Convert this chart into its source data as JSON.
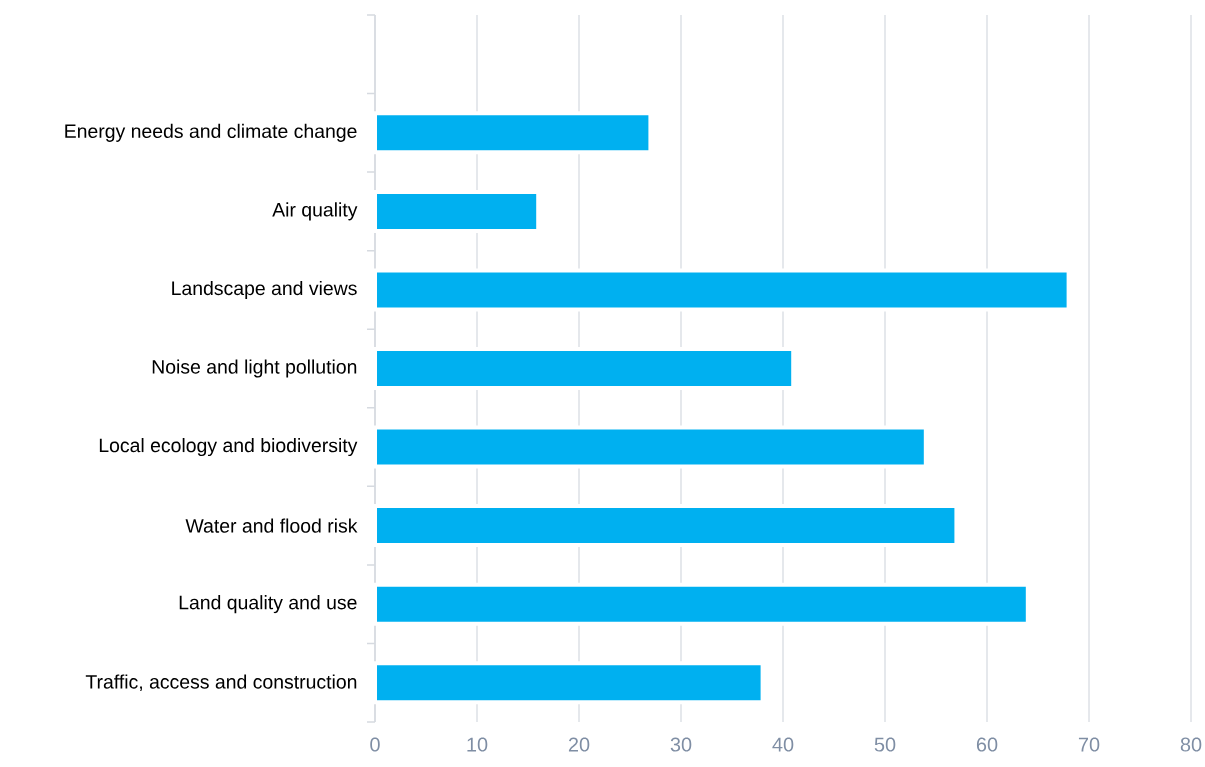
{
  "chart_data": {
    "type": "bar",
    "orientation": "horizontal",
    "categories": [
      null,
      "Energy needs and climate change",
      "Air quality",
      "Landscape and views",
      "Noise and light pollution",
      "Local ecology and biodiversity",
      "Water and flood risk",
      "Land quality and use",
      "Traffic, access and construction"
    ],
    "values": [
      null,
      27,
      16,
      68,
      41,
      54,
      57,
      64,
      38
    ],
    "color": "#00b0f0",
    "xlim": [
      0,
      80
    ],
    "xticks": [
      0,
      10,
      20,
      30,
      40,
      50,
      60,
      70,
      80
    ],
    "grid": "x"
  }
}
